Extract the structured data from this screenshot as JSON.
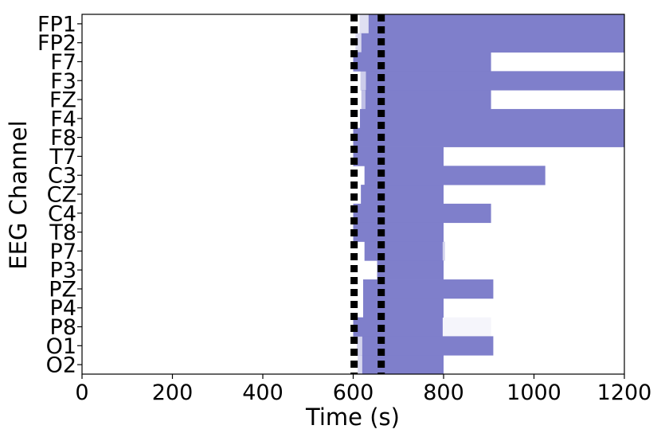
{
  "chart_data": {
    "type": "bar",
    "orientation": "horizontal-interval",
    "title": "",
    "xlabel": "Time (s)",
    "ylabel": "EEG Channel",
    "xlim": [
      0,
      1200
    ],
    "xticks": [
      "0",
      "200",
      "400",
      "600",
      "800",
      "1000",
      "1200"
    ],
    "channels": [
      "FP1",
      "FP2",
      "F7",
      "F3",
      "FZ",
      "F4",
      "F8",
      "T7",
      "C3",
      "CZ",
      "C4",
      "T8",
      "P7",
      "P3",
      "PZ",
      "P4",
      "P8",
      "O1",
      "O2"
    ],
    "bar_color": "#7f7fcb",
    "faint_color": "#f3f3f9",
    "grid": false,
    "legend": "none",
    "vlines": [
      {
        "x": 602,
        "style": "dotted",
        "color": "#000000"
      },
      {
        "x": 662,
        "style": "dotted",
        "color": "#000000"
      }
    ],
    "segments": [
      {
        "channel": "FP1",
        "start": 634,
        "end": 1200
      },
      {
        "channel": "FP1",
        "start": 614,
        "end": 634,
        "opacity": 0.25
      },
      {
        "channel": "FP2",
        "start": 618,
        "end": 1200
      },
      {
        "channel": "FP2",
        "start": 605,
        "end": 618,
        "opacity": 0.3
      },
      {
        "channel": "F7",
        "start": 600,
        "end": 905
      },
      {
        "channel": "F3",
        "start": 628,
        "end": 1200
      },
      {
        "channel": "F3",
        "start": 616,
        "end": 628,
        "opacity": 0.4
      },
      {
        "channel": "FZ",
        "start": 627,
        "end": 905
      },
      {
        "channel": "FZ",
        "start": 618,
        "end": 627,
        "opacity": 0.5
      },
      {
        "channel": "F4",
        "start": 615,
        "end": 1200
      },
      {
        "channel": "F8",
        "start": 600,
        "end": 1200
      },
      {
        "channel": "T7",
        "start": 600,
        "end": 800
      },
      {
        "channel": "C3",
        "start": 625,
        "end": 1025
      },
      {
        "channel": "CZ",
        "start": 617,
        "end": 800
      },
      {
        "channel": "C4",
        "start": 600,
        "end": 905
      },
      {
        "channel": "T8",
        "start": 600,
        "end": 800
      },
      {
        "channel": "P7",
        "start": 625,
        "end": 798
      },
      {
        "channel": "P7",
        "start": 798,
        "end": 803,
        "opacity": 0.35
      },
      {
        "channel": "P3",
        "start": 653,
        "end": 800
      },
      {
        "channel": "PZ",
        "start": 622,
        "end": 910
      },
      {
        "channel": "P4",
        "start": 622,
        "end": 800
      },
      {
        "channel": "P8",
        "start": 600,
        "end": 798
      },
      {
        "channel": "P8",
        "start": 798,
        "end": 905,
        "opacity": 0.08
      },
      {
        "channel": "O1",
        "start": 620,
        "end": 910
      },
      {
        "channel": "O1",
        "start": 608,
        "end": 620,
        "opacity": 0.35
      },
      {
        "channel": "O2",
        "start": 620,
        "end": 800
      },
      {
        "channel": "O2",
        "start": 610,
        "end": 620,
        "opacity": 0.3
      }
    ]
  }
}
